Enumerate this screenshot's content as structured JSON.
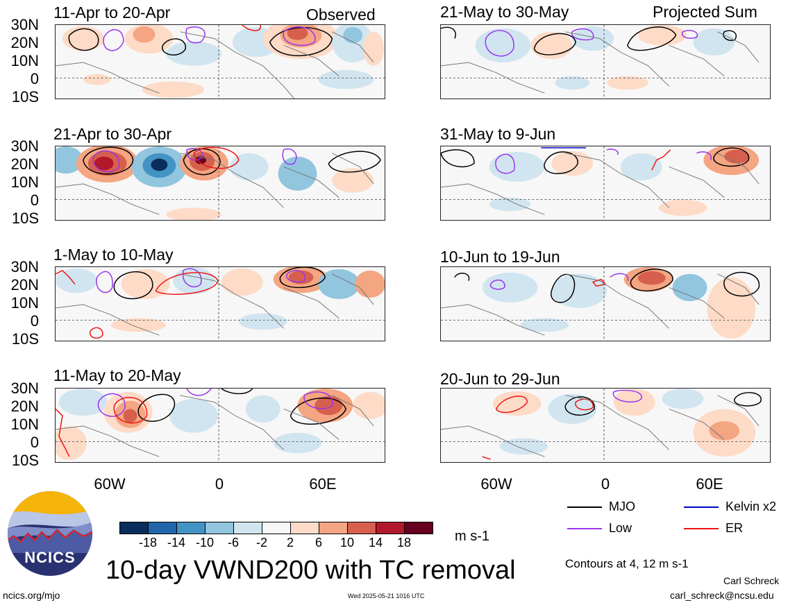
{
  "panels": [
    {
      "title": "11-Apr to 20-Apr",
      "tag": "Observed"
    },
    {
      "title": "21-May to 30-May",
      "tag": "Projected Sum"
    },
    {
      "title": "21-Apr to 30-Apr",
      "tag": ""
    },
    {
      "title": "31-May to 9-Jun",
      "tag": ""
    },
    {
      "title": "1-May to 10-May",
      "tag": ""
    },
    {
      "title": "10-Jun to 19-Jun",
      "tag": ""
    },
    {
      "title": "11-May to 20-May",
      "tag": ""
    },
    {
      "title": "20-Jun to 29-Jun",
      "tag": ""
    }
  ],
  "lat_labels": [
    "30N",
    "20N",
    "10N",
    "0",
    "10S"
  ],
  "lon_labels": [
    "60W",
    "0",
    "60E"
  ],
  "colorbar": {
    "ticks": [
      "-18",
      "-14",
      "-10",
      "-6",
      "-2",
      "2",
      "6",
      "10",
      "14",
      "18"
    ],
    "colors": [
      "#0b2d5b",
      "#2166ac",
      "#4393c3",
      "#92c5de",
      "#d1e5f0",
      "#f7f7f7",
      "#fddbc7",
      "#f4a582",
      "#d6604d",
      "#b2182b",
      "#67001f"
    ],
    "units": "m s-1"
  },
  "legend": {
    "items": [
      {
        "label": "MJO",
        "color": "#000000"
      },
      {
        "label": "Kelvin x2",
        "color": "#0000cc"
      },
      {
        "label": "Low",
        "color": "#9933ee"
      },
      {
        "label": "ER",
        "color": "#ee1111"
      }
    ],
    "contours_note": "Contours at 4, 12 m s-1"
  },
  "logo_text": "NCICS",
  "main_title": "10-day VWND200 with TC removal",
  "footer": {
    "url": "ncics.org/mjo",
    "timestamp": "Wed 2025-05-21 1016 UTC",
    "author": "Carl Schreck",
    "email": "carl_schreck@ncsu.edu"
  }
}
